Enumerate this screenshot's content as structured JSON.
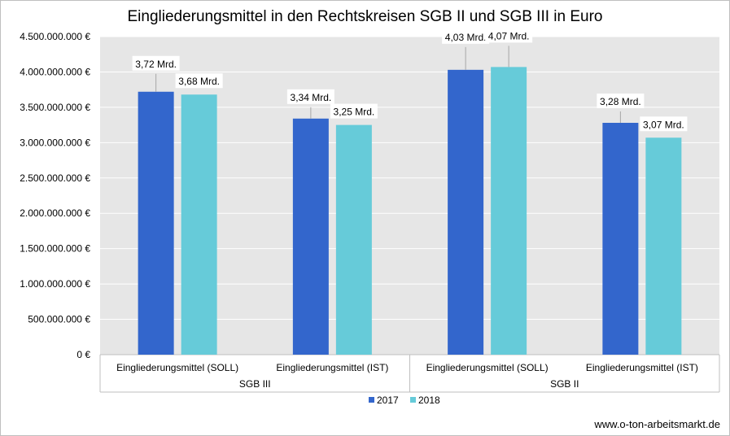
{
  "chart_data": {
    "type": "bar",
    "title": "Eingliederungsmittel in den Rechtskreisen SGB II und SGB III in Euro",
    "categories": [
      "Eingliederungsmittel (SOLL)",
      "Eingliederungsmittel (IST)",
      "Eingliederungsmittel (SOLL)",
      "Eingliederungsmittel (IST)"
    ],
    "groups": [
      {
        "label": "SGB III",
        "categories": [
          0,
          1
        ]
      },
      {
        "label": "SGB II",
        "categories": [
          2,
          3
        ]
      }
    ],
    "series": [
      {
        "name": "2017",
        "color": "#3366cc",
        "values": [
          3720000000,
          3340000000,
          4030000000,
          3280000000
        ],
        "labels": [
          "3,72 Mrd.",
          "3,34 Mrd.",
          "4,03 Mrd.",
          "3,28 Mrd."
        ]
      },
      {
        "name": "2018",
        "color": "#66cbd9",
        "values": [
          3680000000,
          3250000000,
          4070000000,
          3070000000
        ],
        "labels": [
          "3,68 Mrd.",
          "3,25 Mrd.",
          "4,07 Mrd.",
          "3,07 Mrd."
        ]
      }
    ],
    "ylim": [
      0,
      4500000000
    ],
    "yticks": [
      0,
      500000000,
      1000000000,
      1500000000,
      2000000000,
      2500000000,
      3000000000,
      3500000000,
      4000000000,
      4500000000
    ],
    "ytick_labels": [
      "0 €",
      "500.000.000  €",
      "1.000.000.000  €",
      "1.500.000.000  €",
      "2.000.000.000  €",
      "2.500.000.000  €",
      "3.000.000.000  €",
      "3.500.000.000  €",
      "4.000.000.000  €",
      "4.500.000.000  €"
    ],
    "grid": true,
    "legend_position": "bottom",
    "plot_background": "#e6e6e6",
    "gridline_color": "#ffffff"
  },
  "source": "www.o-ton-arbeitsmarkt.de"
}
